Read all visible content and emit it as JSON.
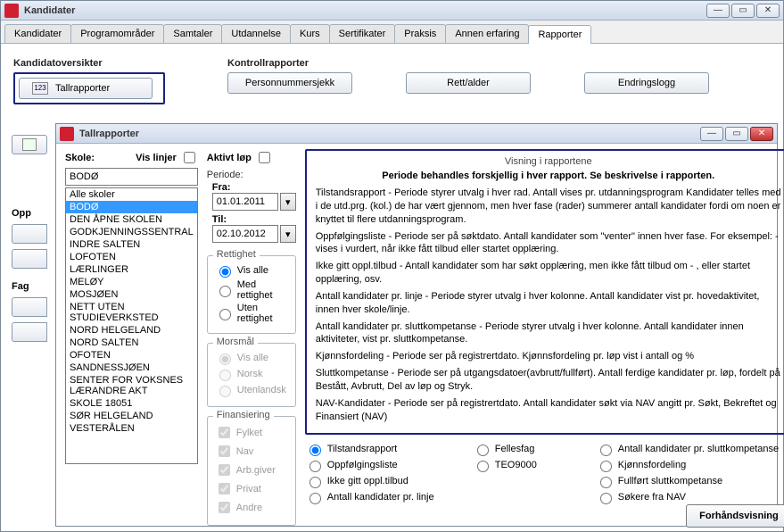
{
  "main_window": {
    "title": "Kandidater",
    "tabs": [
      "Kandidater",
      "Programområder",
      "Samtaler",
      "Utdannelse",
      "Kurs",
      "Sertifikater",
      "Praksis",
      "Annen erfaring",
      "Rapporter"
    ],
    "active_tab": 8,
    "section_kandidat": "Kandidatoversikter",
    "section_kontroll": "Kontrollrapporter",
    "btn_tallrapporter": "Tallrapporter",
    "btn_personnummer": "Personnummersjekk",
    "btn_rettalder": "Rett/alder",
    "btn_endringslogg": "Endringslogg",
    "side_opp": "Opp",
    "side_fag": "Fag"
  },
  "dialog": {
    "title": "Tallrapporter",
    "label_skole": "Skole:",
    "label_vislinjer": "Vis linjer",
    "label_aktivtlop": "Aktivt løp",
    "skole_value": "BODØ",
    "skole_list": [
      "Alle skoler",
      "BODØ",
      "DEN ÅPNE SKOLEN",
      "GODKJENNINGSSENTRAL",
      "INDRE SALTEN",
      "LOFOTEN",
      "LÆRLINGER",
      "MELØY",
      "MOSJØEN",
      "NETT UTEN STUDIEVERKSTED",
      "NORD HELGELAND",
      "NORD SALTEN",
      "OFOTEN",
      "SANDNESSJØEN",
      "SENTER FOR VOKSNES LÆRANDRE AKT",
      "SKOLE 18051",
      "SØR HELGELAND",
      "VESTERÅLEN"
    ],
    "skole_selected_index": 1,
    "periode": {
      "legend": "Periode:",
      "fra_label": "Fra:",
      "fra_value": "01.01.2011",
      "til_label": "Til:",
      "til_value": "02.10.2012"
    },
    "rettighet": {
      "legend": "Rettighet",
      "options": [
        "Vis alle",
        "Med rettighet",
        "Uten rettighet"
      ],
      "selected": 0
    },
    "morsmal": {
      "legend": "Morsmål",
      "options": [
        "Vis alle",
        "Norsk",
        "Utenlandsk"
      ],
      "selected": 0,
      "disabled": true
    },
    "finansiering": {
      "legend": "Finansiering",
      "options": [
        "Fylket",
        "Nav",
        "Arb.giver",
        "Privat",
        "Andre"
      ],
      "disabled": true
    },
    "info": {
      "heading": "Visning i rapportene",
      "lead": "Periode behandles forskjellig i hver rapport. Se beskrivelse i rapporten.",
      "paras": [
        "Tilstandsrapport - Periode styrer utvalg i hver rad. Antall vises pr. utdanningsprogram Kandidater telles med i de utd.prg. (kol.) de har vært gjennom, men hver fase (rader) summerer antall kandidater fordi om noen er knyttet til flere utdanningsprogram.",
        "Oppfølgingsliste - Periode ser på søktdato. Antall kandidater som \"venter\" innen hver fase. For eksempel: - vises i vurdert, når ikke fått tilbud eller startet opplæring.",
        "Ikke gitt oppl.tilbud - Antall kandidater som har søkt opplæring, men ikke fått tilbud om - , eller startet opplæring, osv.",
        "Antall kandidater pr. linje - Periode styrer utvalg i hver kolonne. Antall kandidater vist pr. hovedaktivitet, innen hver skole/linje.",
        "Antall kandidater pr. sluttkompetanse - Periode styrer utvalg i hver kolonne. Antall kandidater innen aktiviteter, vist pr. sluttkompetanse.",
        "Kjønnsfordeling - Periode ser på registrertdato. Kjønnsfordeling pr. løp vist i antall og %",
        "Sluttkompetanse - Periode ser på utgangsdatoer(avbrutt/fullført). Antall ferdige kandidater pr. løp, fordelt på Bestått, Avbrutt, Del av løp og Stryk.",
        "NAV-Kandidater - Periode ser på registrertdato. Antall kandidater søkt via NAV angitt pr. Søkt, Bekreftet og Finansiert (NAV)"
      ]
    },
    "reports": {
      "col1": [
        "Tilstandsrapport",
        "Oppfølgingsliste",
        "Ikke gitt oppl.tilbud",
        "Antall kandidater pr. linje"
      ],
      "col2": [
        "Fellesfag",
        "TEO9000"
      ],
      "col3": [
        "Antall kandidater pr. sluttkompetanse",
        "Kjønnsfordeling",
        "Fullført sluttkompetanse",
        "Søkere fra NAV"
      ],
      "selected": "Tilstandsrapport"
    },
    "btn_preview": "Forhåndsvisning"
  },
  "colors": {
    "highlight": "#1a237e",
    "selection": "#3399ff",
    "titlebar_start": "#e8eef7",
    "titlebar_end": "#cdd9ea"
  }
}
